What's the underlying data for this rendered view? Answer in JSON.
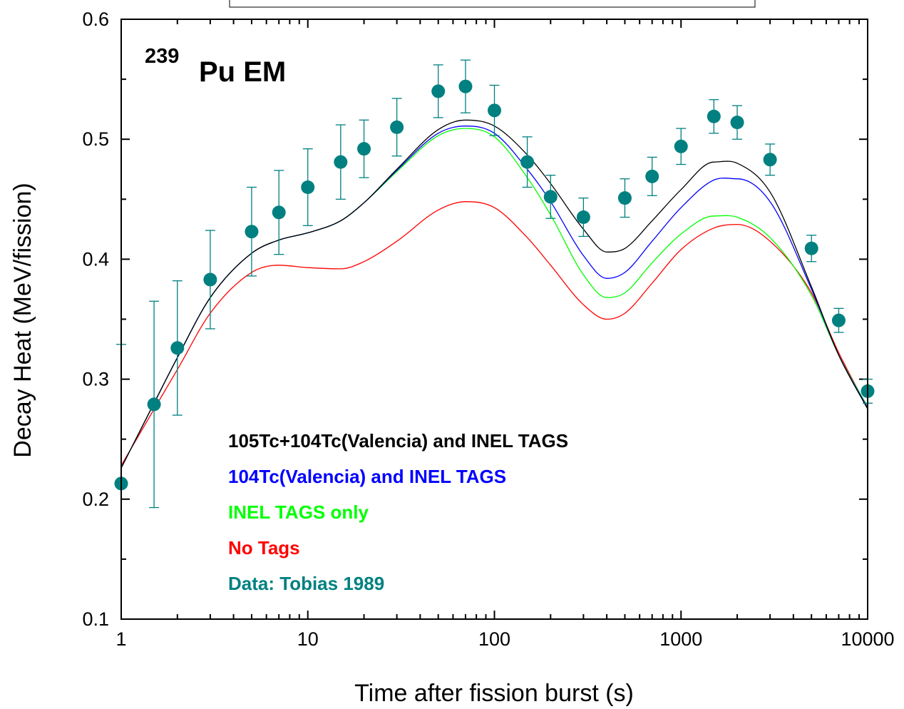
{
  "chart_data": {
    "type": "scatter",
    "xlabel": "Time after fission burst (s)",
    "ylabel": "Decay Heat (MeV/fission)",
    "panel_label": {
      "mass": "239",
      "text": "Pu EM"
    },
    "x_scale": "log",
    "xlim": [
      1,
      10000
    ],
    "ylim": [
      0.1,
      0.6
    ],
    "x_ticks": [
      {
        "value": 1,
        "label": "1"
      },
      {
        "value": 10,
        "label": "10"
      },
      {
        "value": 100,
        "label": "100"
      },
      {
        "value": 1000,
        "label": "1000"
      },
      {
        "value": 10000,
        "label": "10000"
      }
    ],
    "y_ticks": [
      {
        "value": 0.1,
        "label": "0.1"
      },
      {
        "value": 0.2,
        "label": "0.2"
      },
      {
        "value": 0.3,
        "label": "0.3"
      },
      {
        "value": 0.4,
        "label": "0.4"
      },
      {
        "value": 0.5,
        "label": "0.5"
      },
      {
        "value": 0.6,
        "label": "0.6"
      }
    ],
    "legend_position": "lower-left",
    "series": [
      {
        "name": "105Tc+104Tc(Valencia) and INEL TAGS",
        "kind": "line",
        "color": "#000000",
        "x": [
          1,
          1.5,
          2,
          3,
          5,
          7,
          10,
          15,
          20,
          30,
          50,
          70,
          100,
          150,
          200,
          300,
          400,
          500,
          700,
          1000,
          1500,
          2000,
          3000,
          5000,
          7000,
          10000
        ],
        "y": [
          0.226,
          0.28,
          0.318,
          0.368,
          0.405,
          0.416,
          0.422,
          0.432,
          0.447,
          0.475,
          0.508,
          0.516,
          0.511,
          0.487,
          0.463,
          0.425,
          0.406,
          0.409,
          0.432,
          0.458,
          0.481,
          0.48,
          0.456,
          0.377,
          0.32,
          0.275
        ]
      },
      {
        "name": "104Tc(Valencia) and INEL TAGS",
        "kind": "line",
        "color": "#0000ff",
        "x": [
          1,
          1.5,
          2,
          3,
          5,
          7,
          10,
          15,
          20,
          30,
          50,
          70,
          100,
          150,
          200,
          300,
          400,
          500,
          700,
          1000,
          1500,
          2000,
          3000,
          5000,
          7000,
          10000
        ],
        "y": [
          0.226,
          0.28,
          0.318,
          0.368,
          0.405,
          0.416,
          0.422,
          0.432,
          0.447,
          0.474,
          0.505,
          0.511,
          0.505,
          0.475,
          0.448,
          0.403,
          0.384,
          0.389,
          0.415,
          0.443,
          0.466,
          0.467,
          0.448,
          0.375,
          0.32,
          0.276
        ]
      },
      {
        "name": "INEL TAGS only",
        "kind": "line",
        "color": "#00ff00",
        "x": [
          1,
          1.5,
          2,
          3,
          5,
          7,
          10,
          15,
          20,
          30,
          50,
          70,
          100,
          150,
          200,
          300,
          400,
          500,
          700,
          1000,
          1500,
          2000,
          3000,
          5000,
          7000,
          10000
        ],
        "y": [
          0.226,
          0.28,
          0.318,
          0.368,
          0.405,
          0.416,
          0.422,
          0.432,
          0.447,
          0.473,
          0.503,
          0.509,
          0.502,
          0.468,
          0.437,
          0.387,
          0.368,
          0.372,
          0.397,
          0.421,
          0.436,
          0.435,
          0.418,
          0.37,
          0.32,
          0.277
        ]
      },
      {
        "name": "No Tags",
        "kind": "line",
        "color": "#ff0000",
        "x": [
          1,
          1.5,
          2,
          3,
          5,
          7,
          10,
          15,
          20,
          30,
          50,
          70,
          100,
          150,
          200,
          300,
          400,
          500,
          700,
          1000,
          1500,
          2000,
          3000,
          5000,
          7000,
          10000
        ],
        "y": [
          0.228,
          0.275,
          0.308,
          0.355,
          0.389,
          0.395,
          0.393,
          0.392,
          0.398,
          0.415,
          0.441,
          0.448,
          0.443,
          0.418,
          0.395,
          0.362,
          0.35,
          0.355,
          0.38,
          0.408,
          0.426,
          0.429,
          0.415,
          0.372,
          0.322,
          0.276
        ]
      },
      {
        "name": "Data: Tobias 1989",
        "kind": "scatter",
        "color": "#008080",
        "x": [
          1,
          1.5,
          2,
          3,
          5,
          7,
          10,
          15,
          20,
          30,
          50,
          70,
          100,
          150,
          200,
          300,
          500,
          700,
          1000,
          1500,
          2000,
          3000,
          5000,
          7000,
          10000
        ],
        "y": [
          0.213,
          0.279,
          0.326,
          0.383,
          0.423,
          0.439,
          0.46,
          0.481,
          0.492,
          0.51,
          0.54,
          0.544,
          0.524,
          0.481,
          0.452,
          0.435,
          0.451,
          0.469,
          0.494,
          0.519,
          0.514,
          0.483,
          0.409,
          0.349,
          0.29
        ],
        "err": [
          0.116,
          0.086,
          0.056,
          0.041,
          0.037,
          0.035,
          0.032,
          0.031,
          0.024,
          0.024,
          0.022,
          0.022,
          0.021,
          0.021,
          0.018,
          0.016,
          0.016,
          0.016,
          0.015,
          0.014,
          0.014,
          0.013,
          0.011,
          0.01,
          0.01
        ]
      }
    ]
  }
}
